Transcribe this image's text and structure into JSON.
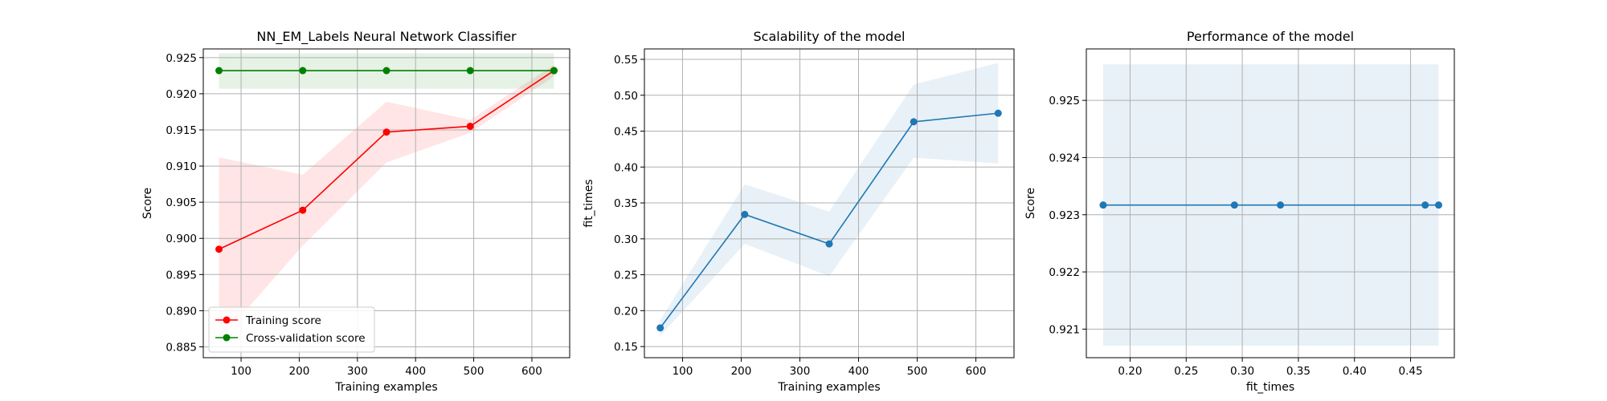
{
  "chart_data": [
    {
      "type": "line",
      "title": "NN_EM_Labels Neural Network Classifier",
      "xlabel": "Training examples",
      "ylabel": "Score",
      "xlim": [
        35,
        665
      ],
      "ylim": [
        0.8835,
        0.9262
      ],
      "xticks": [
        100,
        200,
        300,
        400,
        500,
        600
      ],
      "yticks": [
        0.885,
        0.89,
        0.895,
        0.9,
        0.905,
        0.91,
        0.915,
        0.92,
        0.925
      ],
      "ytick_decimals": 3,
      "grid": true,
      "legend_position": "lower-left",
      "x": [
        62,
        206,
        350,
        494,
        638
      ],
      "series": [
        {
          "name": "Training score",
          "color": "#ff0000",
          "marker": "circle",
          "values": [
            0.8985,
            0.9039,
            0.9147,
            0.9155,
            0.9232
          ],
          "band_upper": [
            0.9112,
            0.9088,
            0.9189,
            0.9164,
            0.924
          ],
          "band_lower": [
            0.8858,
            0.899,
            0.9105,
            0.9146,
            0.9224
          ],
          "band_color": "#ff0000"
        },
        {
          "name": "Cross-validation score",
          "color": "#008000",
          "marker": "circle",
          "values": [
            0.9232,
            0.9232,
            0.9232,
            0.9232,
            0.9232
          ],
          "band_upper": [
            0.9256,
            0.9256,
            0.9256,
            0.9256,
            0.9256
          ],
          "band_lower": [
            0.9207,
            0.9207,
            0.9207,
            0.9207,
            0.9207
          ],
          "band_color": "#008000"
        }
      ]
    },
    {
      "type": "line",
      "title": "Scalability of the model",
      "xlabel": "Training examples",
      "ylabel": "fit_times",
      "xlim": [
        35,
        665
      ],
      "ylim": [
        0.1345,
        0.5645
      ],
      "xticks": [
        100,
        200,
        300,
        400,
        500,
        600
      ],
      "yticks": [
        0.15,
        0.2,
        0.25,
        0.3,
        0.35,
        0.4,
        0.45,
        0.5,
        0.55
      ],
      "ytick_decimals": 2,
      "grid": true,
      "x": [
        62,
        206,
        350,
        494,
        638
      ],
      "series": [
        {
          "name": "",
          "color": "#1f77b4",
          "marker": "circle",
          "values": [
            0.176,
            0.334,
            0.293,
            0.463,
            0.475
          ],
          "band_upper": [
            0.187,
            0.376,
            0.338,
            0.515,
            0.545
          ],
          "band_lower": [
            0.165,
            0.293,
            0.248,
            0.413,
            0.405
          ],
          "band_color": "#1f77b4"
        }
      ]
    },
    {
      "type": "line",
      "title": "Performance of the model",
      "xlabel": "fit_times",
      "ylabel": "Score",
      "xlim": [
        0.161,
        0.489
      ],
      "ylim": [
        0.9205,
        0.9259
      ],
      "xticks": [
        0.2,
        0.25,
        0.3,
        0.35,
        0.4,
        0.45
      ],
      "xtick_decimals": 2,
      "yticks": [
        0.921,
        0.922,
        0.923,
        0.924,
        0.925
      ],
      "ytick_decimals": 3,
      "grid": true,
      "x": [
        0.176,
        0.293,
        0.334,
        0.463,
        0.475
      ],
      "series": [
        {
          "name": "",
          "color": "#1f77b4",
          "marker": "circle",
          "values": [
            0.92317,
            0.92317,
            0.92317,
            0.92317,
            0.92317
          ],
          "band_upper": [
            0.92563,
            0.92563,
            0.92563,
            0.92563,
            0.92563
          ],
          "band_lower": [
            0.92071,
            0.92071,
            0.92071,
            0.92071,
            0.92071
          ],
          "band_color": "#1f77b4"
        }
      ]
    }
  ]
}
